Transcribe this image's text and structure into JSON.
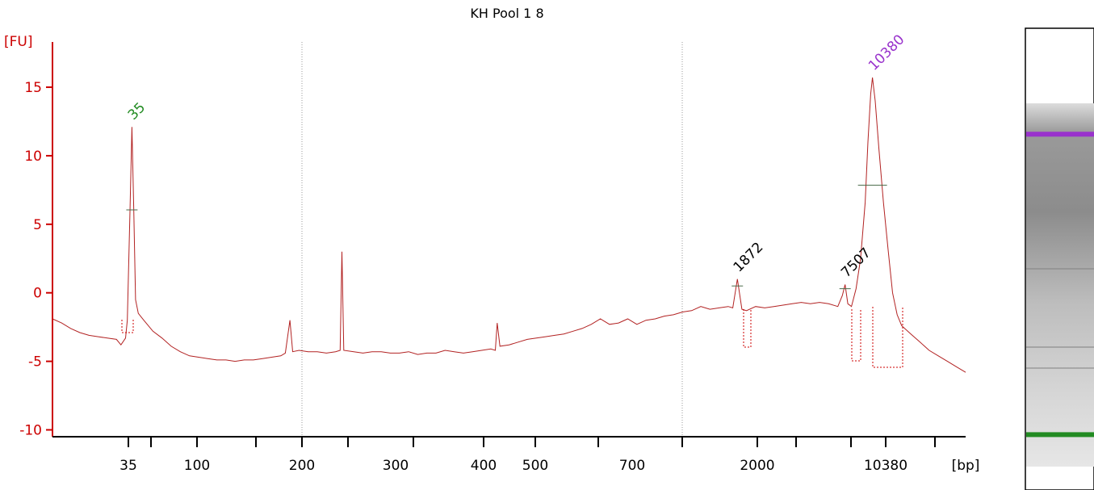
{
  "chart_data": {
    "type": "line",
    "title": "KH Pool 1 8",
    "ylabel": "[FU]",
    "xlabel": "[bp]",
    "ylim": [
      -10.5,
      18.3
    ],
    "y_ticks": [
      15,
      10,
      5,
      0,
      -5,
      -10
    ],
    "y_tick_labels": [
      "15",
      "10",
      "5",
      "0",
      "-5",
      "-10"
    ],
    "x_tick_labels": [
      "35",
      "100",
      "200",
      "300",
      "400",
      "500",
      "700",
      "2000",
      "10380"
    ],
    "grid": false,
    "series": [
      {
        "color": "#b22222",
        "note_x": "x values are migration-position fractions (0–1) along the bp axis",
        "points": [
          [
            0.0,
            -1.9
          ],
          [
            0.01,
            -2.2
          ],
          [
            0.02,
            -2.6
          ],
          [
            0.03,
            -2.9
          ],
          [
            0.04,
            -3.1
          ],
          [
            0.05,
            -3.2
          ],
          [
            0.06,
            -3.3
          ],
          [
            0.07,
            -3.4
          ],
          [
            0.075,
            -3.8
          ],
          [
            0.08,
            -3.3
          ],
          [
            0.082,
            -2.0
          ],
          [
            0.085,
            6.2
          ],
          [
            0.087,
            12.1
          ],
          [
            0.089,
            6.0
          ],
          [
            0.091,
            -0.5
          ],
          [
            0.094,
            -1.5
          ],
          [
            0.1,
            -2.0
          ],
          [
            0.11,
            -2.8
          ],
          [
            0.12,
            -3.3
          ],
          [
            0.13,
            -3.9
          ],
          [
            0.14,
            -4.3
          ],
          [
            0.15,
            -4.6
          ],
          [
            0.16,
            -4.7
          ],
          [
            0.17,
            -4.8
          ],
          [
            0.18,
            -4.9
          ],
          [
            0.19,
            -4.9
          ],
          [
            0.2,
            -5.0
          ],
          [
            0.21,
            -4.9
          ],
          [
            0.22,
            -4.9
          ],
          [
            0.23,
            -4.8
          ],
          [
            0.24,
            -4.7
          ],
          [
            0.25,
            -4.6
          ],
          [
            0.255,
            -4.4
          ],
          [
            0.26,
            -2.0
          ],
          [
            0.263,
            -4.3
          ],
          [
            0.27,
            -4.2
          ],
          [
            0.28,
            -4.3
          ],
          [
            0.29,
            -4.3
          ],
          [
            0.3,
            -4.4
          ],
          [
            0.31,
            -4.3
          ],
          [
            0.315,
            -4.2
          ],
          [
            0.317,
            3.0
          ],
          [
            0.319,
            -4.2
          ],
          [
            0.33,
            -4.3
          ],
          [
            0.34,
            -4.4
          ],
          [
            0.35,
            -4.3
          ],
          [
            0.36,
            -4.3
          ],
          [
            0.37,
            -4.4
          ],
          [
            0.38,
            -4.4
          ],
          [
            0.39,
            -4.3
          ],
          [
            0.4,
            -4.5
          ],
          [
            0.41,
            -4.4
          ],
          [
            0.42,
            -4.4
          ],
          [
            0.43,
            -4.2
          ],
          [
            0.44,
            -4.3
          ],
          [
            0.45,
            -4.4
          ],
          [
            0.46,
            -4.3
          ],
          [
            0.47,
            -4.2
          ],
          [
            0.48,
            -4.1
          ],
          [
            0.485,
            -4.2
          ],
          [
            0.487,
            -2.2
          ],
          [
            0.49,
            -3.9
          ],
          [
            0.5,
            -3.8
          ],
          [
            0.51,
            -3.6
          ],
          [
            0.52,
            -3.4
          ],
          [
            0.53,
            -3.3
          ],
          [
            0.54,
            -3.2
          ],
          [
            0.55,
            -3.1
          ],
          [
            0.56,
            -3.0
          ],
          [
            0.57,
            -2.8
          ],
          [
            0.58,
            -2.6
          ],
          [
            0.59,
            -2.3
          ],
          [
            0.6,
            -1.9
          ],
          [
            0.61,
            -2.3
          ],
          [
            0.62,
            -2.2
          ],
          [
            0.63,
            -1.9
          ],
          [
            0.64,
            -2.3
          ],
          [
            0.65,
            -2.0
          ],
          [
            0.66,
            -1.9
          ],
          [
            0.67,
            -1.7
          ],
          [
            0.68,
            -1.6
          ],
          [
            0.69,
            -1.4
          ],
          [
            0.7,
            -1.3
          ],
          [
            0.71,
            -1.0
          ],
          [
            0.72,
            -1.2
          ],
          [
            0.73,
            -1.1
          ],
          [
            0.74,
            -1.0
          ],
          [
            0.745,
            -1.1
          ],
          [
            0.75,
            1.0
          ],
          [
            0.755,
            -1.2
          ],
          [
            0.76,
            -1.3
          ],
          [
            0.77,
            -1.0
          ],
          [
            0.78,
            -1.1
          ],
          [
            0.79,
            -1.0
          ],
          [
            0.8,
            -0.9
          ],
          [
            0.81,
            -0.8
          ],
          [
            0.82,
            -0.7
          ],
          [
            0.83,
            -0.8
          ],
          [
            0.84,
            -0.7
          ],
          [
            0.85,
            -0.8
          ],
          [
            0.86,
            -1.0
          ],
          [
            0.865,
            -0.2
          ],
          [
            0.868,
            0.6
          ],
          [
            0.871,
            -0.8
          ],
          [
            0.875,
            -1.0
          ],
          [
            0.88,
            0.3
          ],
          [
            0.885,
            2.5
          ],
          [
            0.89,
            6.6
          ],
          [
            0.893,
            11.0
          ],
          [
            0.896,
            14.5
          ],
          [
            0.898,
            15.7
          ],
          [
            0.901,
            14.0
          ],
          [
            0.905,
            10.5
          ],
          [
            0.91,
            6.6
          ],
          [
            0.915,
            3.2
          ],
          [
            0.92,
            0.0
          ],
          [
            0.925,
            -1.6
          ],
          [
            0.93,
            -2.4
          ],
          [
            0.94,
            -3.0
          ],
          [
            0.95,
            -3.6
          ],
          [
            0.96,
            -4.2
          ],
          [
            0.97,
            -4.6
          ],
          [
            0.98,
            -5.0
          ],
          [
            0.99,
            -5.4
          ],
          [
            1.0,
            -5.8
          ]
        ]
      }
    ],
    "peaks": [
      {
        "label": "35",
        "x": 0.087,
        "y": 12.1,
        "color": "#228b22"
      },
      {
        "label": "1872",
        "x": 0.75,
        "y": 1.0,
        "color": "#000000"
      },
      {
        "label": "7507",
        "x": 0.868,
        "y": 0.6,
        "color": "#000000"
      },
      {
        "label": "10380",
        "x": 0.898,
        "y": 15.7,
        "color": "#9932cc"
      }
    ],
    "gel": {
      "bands": [
        {
          "position": 0.085,
          "color": "#9932cc"
        },
        {
          "position": 0.912,
          "color": "#228b22"
        }
      ]
    }
  }
}
